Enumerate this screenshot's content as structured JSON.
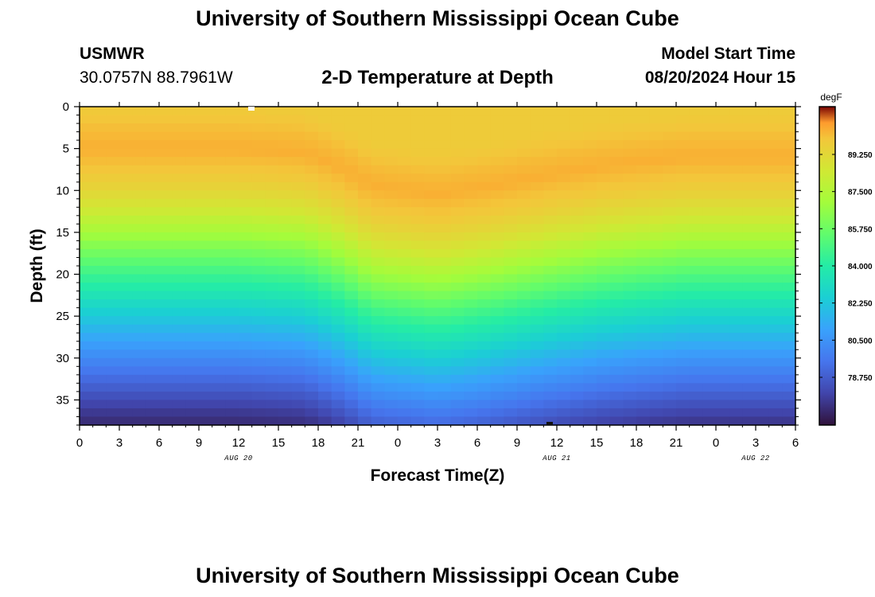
{
  "header": {
    "title": "University of Southern Mississippi Ocean Cube",
    "station_id": "USMWR",
    "coordinates": "30.0757N  88.7961W",
    "subtitle": "2-D Temperature at Depth",
    "model_start_label": "Model Start Time",
    "model_start_value": "08/20/2024 Hour 15"
  },
  "footer": {
    "title": "University of Southern Mississippi Ocean Cube"
  },
  "chart_data": {
    "type": "heatmap",
    "title": "2-D Temperature at Depth",
    "xlabel": "Forecast Time(Z)",
    "ylabel": "Depth (ft)",
    "x_hours_from_aug20_00z_range": [
      0,
      54
    ],
    "x_tick_labels": [
      "0",
      "3",
      "6",
      "9",
      "12",
      "15",
      "18",
      "21",
      "0",
      "3",
      "6",
      "9",
      "12",
      "15",
      "18",
      "21",
      "0",
      "3",
      "6"
    ],
    "date_labels": [
      {
        "hour": 12,
        "label": "AUG 20"
      },
      {
        "hour": 36,
        "label": "AUG 21"
      },
      {
        "hour": 51,
        "label": "AUG 22"
      }
    ],
    "y_range": [
      0,
      38
    ],
    "y_ticks": [
      0,
      5,
      10,
      15,
      20,
      25,
      30,
      35
    ],
    "y_inverted": true,
    "colorbar": {
      "unit": "degF",
      "range": [
        76.5,
        91.5
      ],
      "tick_values": [
        89.25,
        87.5,
        85.75,
        84.0,
        82.25,
        80.5,
        78.75
      ],
      "tick_labels": [
        "89.250",
        "87.500",
        "85.750",
        "84.000",
        "82.250",
        "80.500",
        "78.750"
      ]
    },
    "temperature_profile_degF": {
      "depths_ft": [
        0,
        3,
        5,
        8,
        10,
        12,
        14,
        16,
        18,
        20,
        22,
        24,
        26,
        28,
        30,
        32,
        34,
        36,
        38
      ],
      "temps": [
        89.8,
        90.2,
        90.4,
        89.9,
        89.3,
        88.6,
        87.6,
        86.6,
        85.6,
        84.6,
        83.7,
        82.8,
        81.9,
        81.0,
        80.2,
        79.4,
        78.6,
        77.8,
        77.2
      ],
      "depth_shift_by_hour": {
        "hours": [
          0,
          12,
          17,
          20,
          22,
          27,
          31,
          36,
          40,
          46,
          54
        ],
        "shift_ft": [
          0,
          0,
          0.5,
          2.5,
          4.5,
          5.5,
          4.5,
          3,
          2,
          1,
          1
        ]
      }
    },
    "legend": "colorbar at right"
  }
}
